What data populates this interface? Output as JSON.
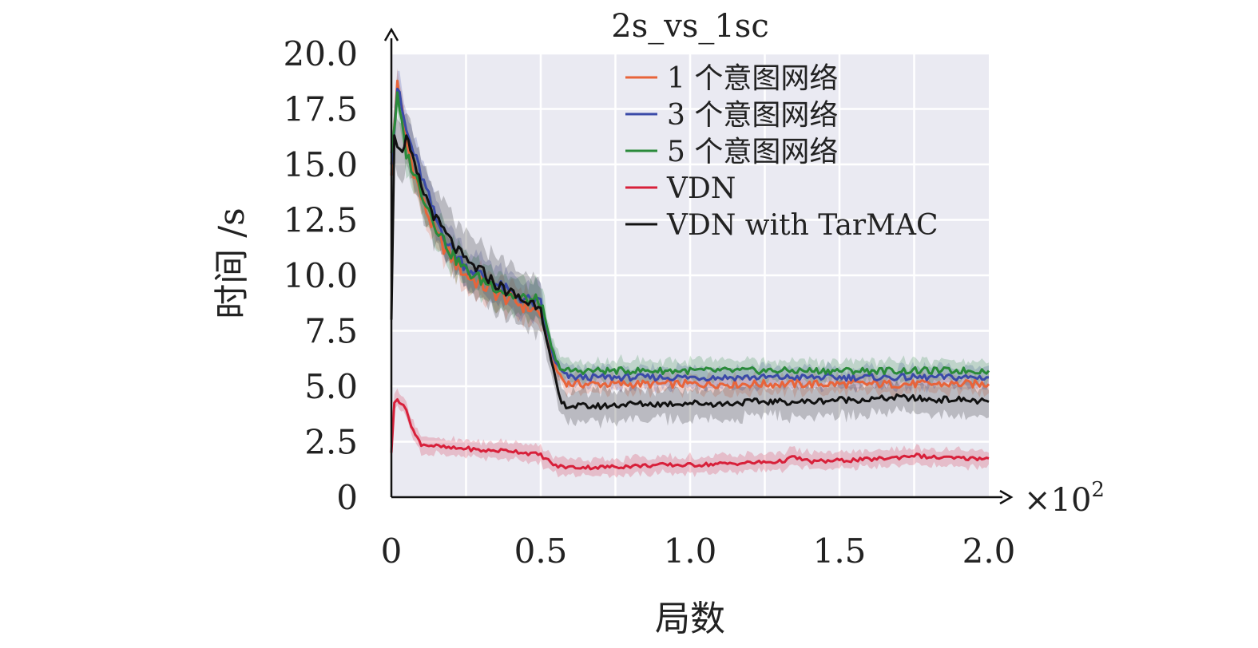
{
  "chart_data": {
    "type": "line",
    "title": "2s_vs_1sc",
    "xlabel": "局数",
    "ylabel": "时间 /s",
    "x_multiplier": "×10",
    "x_multiplier_exp": "2",
    "xlim": [
      0,
      2.0
    ],
    "ylim": [
      0,
      20.0
    ],
    "xticks": [
      0,
      0.5,
      1.0,
      1.5,
      2.0
    ],
    "xtick_labels": [
      "0",
      "0.5",
      "1.0",
      "1.5",
      "2.0"
    ],
    "yticks": [
      0,
      2.5,
      5.0,
      7.5,
      10.0,
      12.5,
      15.0,
      17.5,
      20.0
    ],
    "ytick_labels": [
      "0",
      "2.5",
      "5.0",
      "7.5",
      "10.0",
      "12.5",
      "15.0",
      "17.5",
      "20.0"
    ],
    "grid": true,
    "legend_position": "top-right",
    "series": [
      {
        "name": "1 个意图网络",
        "color": "#e8643a",
        "x": [
          0,
          0.02,
          0.05,
          0.1,
          0.15,
          0.2,
          0.25,
          0.3,
          0.35,
          0.4,
          0.45,
          0.5,
          0.52,
          0.55,
          0.58,
          0.6,
          0.7,
          0.8,
          0.9,
          1.0,
          1.1,
          1.2,
          1.3,
          1.4,
          1.5,
          1.6,
          1.7,
          1.8,
          1.9,
          2.0
        ],
        "y": [
          14.5,
          18.8,
          16.0,
          13.5,
          11.8,
          10.8,
          10.0,
          9.6,
          9.2,
          8.9,
          8.6,
          8.3,
          7.2,
          5.8,
          5.2,
          5.1,
          5.1,
          5.1,
          5.1,
          5.1,
          5.1,
          5.1,
          5.1,
          5.1,
          5.1,
          5.1,
          5.1,
          5.1,
          5.1,
          5.1
        ]
      },
      {
        "name": "3 个意图网络",
        "color": "#3a4aa8",
        "x": [
          0,
          0.02,
          0.05,
          0.1,
          0.15,
          0.2,
          0.25,
          0.3,
          0.35,
          0.4,
          0.45,
          0.5,
          0.52,
          0.55,
          0.58,
          0.6,
          0.7,
          0.8,
          0.9,
          1.0,
          1.1,
          1.2,
          1.3,
          1.4,
          1.5,
          1.6,
          1.7,
          1.8,
          1.9,
          2.0
        ],
        "y": [
          15.0,
          18.5,
          16.5,
          14.5,
          12.5,
          11.2,
          10.4,
          10.0,
          9.6,
          9.2,
          8.9,
          8.7,
          7.5,
          6.0,
          5.5,
          5.4,
          5.4,
          5.4,
          5.4,
          5.4,
          5.4,
          5.4,
          5.4,
          5.4,
          5.4,
          5.4,
          5.4,
          5.4,
          5.4,
          5.4
        ]
      },
      {
        "name": "5 个意图网络",
        "color": "#2a8a3a",
        "x": [
          0,
          0.02,
          0.05,
          0.1,
          0.15,
          0.2,
          0.25,
          0.3,
          0.35,
          0.4,
          0.45,
          0.5,
          0.52,
          0.55,
          0.58,
          0.6,
          0.7,
          0.8,
          0.9,
          1.0,
          1.1,
          1.2,
          1.3,
          1.4,
          1.5,
          1.6,
          1.7,
          1.8,
          1.9,
          2.0
        ],
        "y": [
          15.5,
          18.0,
          15.5,
          13.8,
          12.2,
          11.0,
          10.2,
          9.8,
          9.5,
          9.1,
          8.9,
          8.8,
          7.6,
          6.1,
          5.7,
          5.7,
          5.7,
          5.7,
          5.7,
          5.7,
          5.7,
          5.7,
          5.7,
          5.7,
          5.7,
          5.7,
          5.7,
          5.7,
          5.7,
          5.7
        ]
      },
      {
        "name": "VDN",
        "color": "#d8203a",
        "x": [
          0,
          0.01,
          0.02,
          0.04,
          0.06,
          0.08,
          0.1,
          0.15,
          0.2,
          0.25,
          0.3,
          0.35,
          0.4,
          0.45,
          0.5,
          0.55,
          0.6,
          0.7,
          0.8,
          0.9,
          1.0,
          1.1,
          1.2,
          1.3,
          1.35,
          1.4,
          1.5,
          1.6,
          1.7,
          1.75,
          1.8,
          1.9,
          2.0
        ],
        "y": [
          2.0,
          4.2,
          4.4,
          4.2,
          3.5,
          2.8,
          2.4,
          2.3,
          2.2,
          2.2,
          2.1,
          2.1,
          2.1,
          2.0,
          1.9,
          1.4,
          1.35,
          1.35,
          1.4,
          1.45,
          1.45,
          1.5,
          1.55,
          1.6,
          1.8,
          1.6,
          1.65,
          1.7,
          1.8,
          1.9,
          1.8,
          1.75,
          1.75
        ]
      },
      {
        "name": "VDN with TarMAC",
        "color": "#111111",
        "x": [
          0,
          0.01,
          0.03,
          0.05,
          0.07,
          0.1,
          0.15,
          0.2,
          0.25,
          0.3,
          0.35,
          0.4,
          0.45,
          0.5,
          0.52,
          0.55,
          0.57,
          0.6,
          0.7,
          0.8,
          0.9,
          1.0,
          1.1,
          1.2,
          1.3,
          1.4,
          1.5,
          1.6,
          1.7,
          1.8,
          1.9,
          2.0
        ],
        "y": [
          8.0,
          16.5,
          15.5,
          16.2,
          15.2,
          14.0,
          12.5,
          11.5,
          10.6,
          10.2,
          9.6,
          9.2,
          8.8,
          8.7,
          7.0,
          5.2,
          4.2,
          4.1,
          4.1,
          4.2,
          4.2,
          4.25,
          4.2,
          4.3,
          4.3,
          4.3,
          4.4,
          4.4,
          4.5,
          4.4,
          4.4,
          4.3
        ]
      }
    ]
  }
}
